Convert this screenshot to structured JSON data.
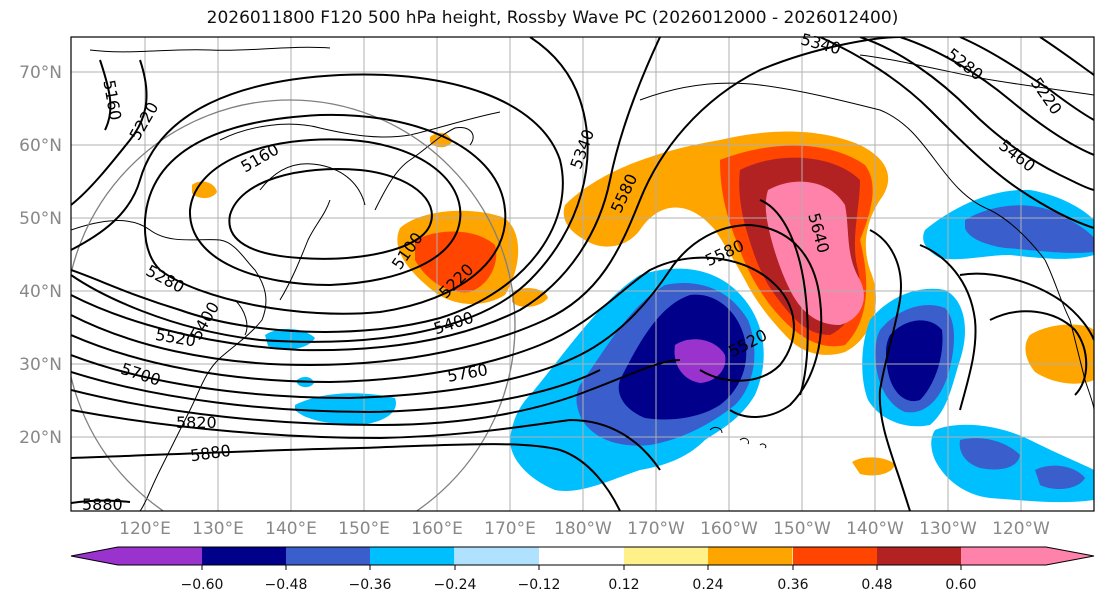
{
  "title": "2026011800 F120 500 hPa height, Rossby Wave PC (2026012000 - 2026012400)",
  "lat_labels": [
    "70°N",
    "60°N",
    "50°N",
    "40°N",
    "30°N",
    "20°N"
  ],
  "lon_labels": [
    "120°E",
    "130°E",
    "140°E",
    "150°E",
    "160°E",
    "170°E",
    "180°W",
    "170°W",
    "160°W",
    "150°W",
    "140°W",
    "130°W",
    "120°W"
  ],
  "colorbar": {
    "tick_labels": [
      "−0.60",
      "−0.48",
      "−0.36",
      "−0.24",
      "−0.12",
      "0.12",
      "0.24",
      "0.36",
      "0.48",
      "0.60"
    ],
    "colors": [
      "#9a32cd",
      "#00008b",
      "#3a5fcd",
      "#00bfff",
      "#b0e2ff",
      "#ffffff",
      "#fff08a",
      "#ffa500",
      "#ff4500",
      "#b22222",
      "#ff82ab"
    ]
  },
  "contour_labels": [
    "5160",
    "5220",
    "5160",
    "5100",
    "5220",
    "5280",
    "5340",
    "5400",
    "5520",
    "5580",
    "5640",
    "5580",
    "5520",
    "5700",
    "5760",
    "5820",
    "5880",
    "5880",
    "5340",
    "5280",
    "5220",
    "5460",
    "5400"
  ]
}
